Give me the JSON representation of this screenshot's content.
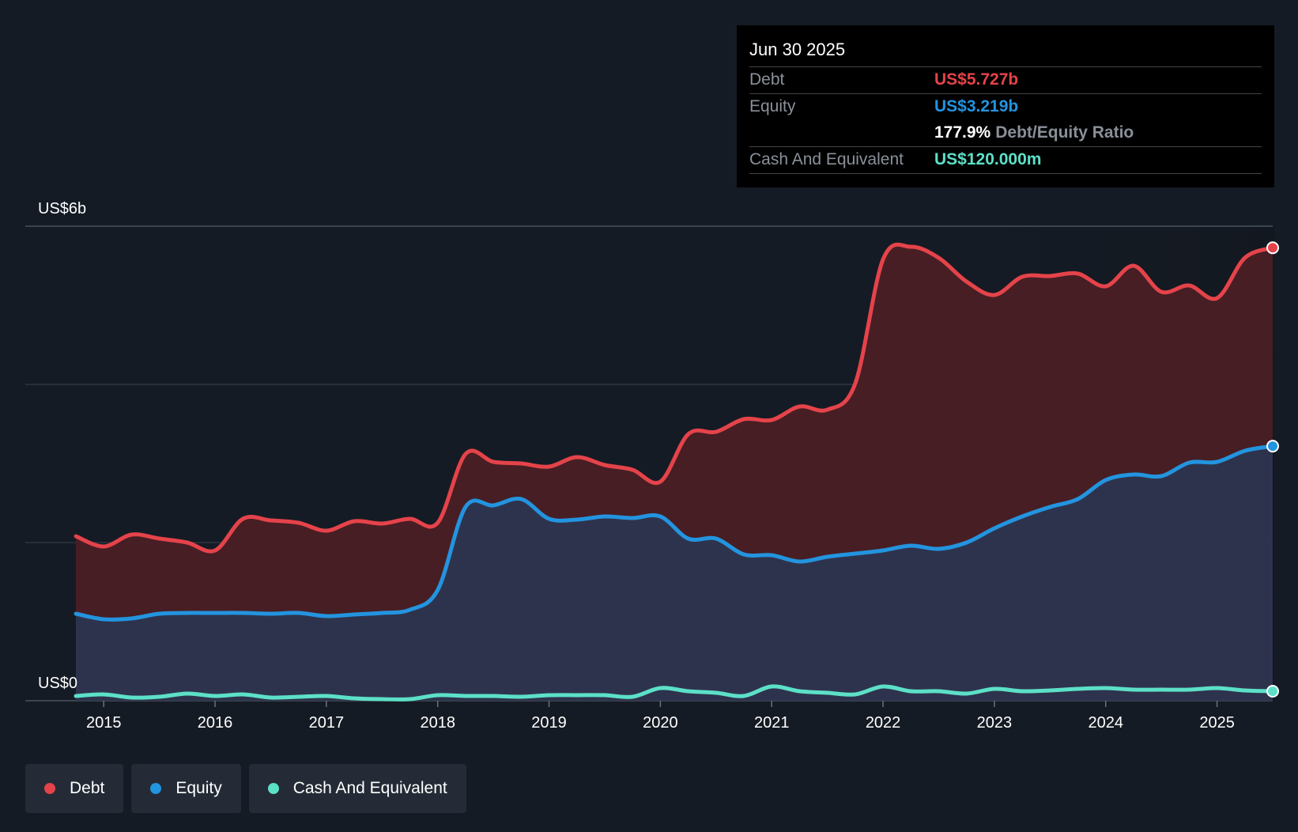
{
  "chart_data": {
    "type": "area",
    "title": "",
    "y_label_top": "US$6b",
    "y_label_bottom": "US$0",
    "ylim": [
      0,
      6
    ],
    "x_range": [
      2014.75,
      2025.5
    ],
    "x_ticks": [
      "2015",
      "2016",
      "2017",
      "2018",
      "2019",
      "2020",
      "2021",
      "2022",
      "2023",
      "2024",
      "2025"
    ],
    "grid": true,
    "series": [
      {
        "name": "Debt",
        "color": "#e5434a",
        "fill": "#4a1f25",
        "x": [
          2014.75,
          2015.0,
          2015.25,
          2015.5,
          2015.75,
          2016.0,
          2016.25,
          2016.5,
          2016.75,
          2017.0,
          2017.25,
          2017.5,
          2017.75,
          2018.0,
          2018.25,
          2018.5,
          2018.75,
          2019.0,
          2019.25,
          2019.5,
          2019.75,
          2020.0,
          2020.25,
          2020.5,
          2020.75,
          2021.0,
          2021.25,
          2021.5,
          2021.75,
          2022.0,
          2022.25,
          2022.5,
          2022.75,
          2023.0,
          2023.25,
          2023.5,
          2023.75,
          2024.0,
          2024.25,
          2024.5,
          2024.75,
          2025.0,
          2025.25,
          2025.5
        ],
        "values": [
          2.08,
          1.95,
          2.1,
          2.05,
          2.0,
          1.9,
          2.3,
          2.28,
          2.25,
          2.15,
          2.27,
          2.24,
          2.3,
          2.25,
          3.12,
          3.02,
          3.0,
          2.96,
          3.08,
          2.98,
          2.92,
          2.77,
          3.37,
          3.4,
          3.56,
          3.55,
          3.72,
          3.68,
          4.01,
          5.58,
          5.74,
          5.6,
          5.3,
          5.13,
          5.36,
          5.37,
          5.4,
          5.24,
          5.5,
          5.17,
          5.25,
          5.09,
          5.6,
          5.727
        ]
      },
      {
        "name": "Equity",
        "color": "#2394df",
        "fill": "#2d3550",
        "x": [
          2014.75,
          2015.0,
          2015.25,
          2015.5,
          2015.75,
          2016.0,
          2016.25,
          2016.5,
          2016.75,
          2017.0,
          2017.25,
          2017.5,
          2017.75,
          2018.0,
          2018.25,
          2018.5,
          2018.75,
          2019.0,
          2019.25,
          2019.5,
          2019.75,
          2020.0,
          2020.25,
          2020.5,
          2020.75,
          2021.0,
          2021.25,
          2021.5,
          2021.75,
          2022.0,
          2022.25,
          2022.5,
          2022.75,
          2023.0,
          2023.25,
          2023.5,
          2023.75,
          2024.0,
          2024.25,
          2024.5,
          2024.75,
          2025.0,
          2025.25,
          2025.5
        ],
        "values": [
          1.1,
          1.03,
          1.04,
          1.1,
          1.11,
          1.11,
          1.11,
          1.1,
          1.11,
          1.07,
          1.09,
          1.11,
          1.15,
          1.4,
          2.45,
          2.47,
          2.55,
          2.3,
          2.29,
          2.33,
          2.31,
          2.33,
          2.05,
          2.05,
          1.85,
          1.84,
          1.76,
          1.82,
          1.86,
          1.9,
          1.96,
          1.92,
          2.0,
          2.18,
          2.33,
          2.45,
          2.55,
          2.79,
          2.86,
          2.84,
          3.01,
          3.02,
          3.16,
          3.219
        ]
      },
      {
        "name": "Cash And Equivalent",
        "color": "#5ce0c8",
        "fill": "none",
        "x": [
          2014.75,
          2015.0,
          2015.25,
          2015.5,
          2015.75,
          2016.0,
          2016.25,
          2016.5,
          2016.75,
          2017.0,
          2017.25,
          2017.5,
          2017.75,
          2018.0,
          2018.25,
          2018.5,
          2018.75,
          2019.0,
          2019.25,
          2019.5,
          2019.75,
          2020.0,
          2020.25,
          2020.5,
          2020.75,
          2021.0,
          2021.25,
          2021.5,
          2021.75,
          2022.0,
          2022.25,
          2022.5,
          2022.75,
          2023.0,
          2023.25,
          2023.5,
          2023.75,
          2024.0,
          2024.25,
          2024.5,
          2024.75,
          2025.0,
          2025.25,
          2025.5
        ],
        "values": [
          0.06,
          0.08,
          0.04,
          0.05,
          0.09,
          0.06,
          0.08,
          0.04,
          0.05,
          0.06,
          0.03,
          0.02,
          0.02,
          0.07,
          0.06,
          0.06,
          0.05,
          0.07,
          0.07,
          0.07,
          0.05,
          0.16,
          0.12,
          0.1,
          0.06,
          0.18,
          0.12,
          0.1,
          0.08,
          0.18,
          0.12,
          0.12,
          0.09,
          0.15,
          0.12,
          0.13,
          0.15,
          0.16,
          0.14,
          0.14,
          0.14,
          0.16,
          0.13,
          0.12
        ]
      }
    ]
  },
  "tooltip": {
    "date": "Jun 30 2025",
    "debt_label": "Debt",
    "debt_value": "US$5.727b",
    "equity_label": "Equity",
    "equity_value": "US$3.219b",
    "ratio_value": "177.9%",
    "ratio_label": "Debt/Equity Ratio",
    "cash_label": "Cash And Equivalent",
    "cash_value": "US$120.000m"
  },
  "legend": [
    {
      "label": "Debt",
      "color": "#e5434a"
    },
    {
      "label": "Equity",
      "color": "#2394df"
    },
    {
      "label": "Cash And Equivalent",
      "color": "#5ce0c8"
    }
  ],
  "colors": {
    "background": "#151b24",
    "debt": "#e5434a",
    "equity": "#2394df",
    "cash": "#5ce0c8"
  }
}
